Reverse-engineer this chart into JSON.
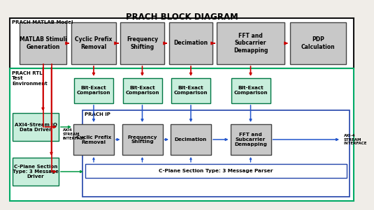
{
  "title": "PRACH BLOCK DIAGRAM",
  "bg_color": "#f0ede8",
  "matlab_border_color": "#111111",
  "rtl_border_color": "#00aa66",
  "ip_border_color": "#2244aa",
  "box_fill_gray": "#c8c8c8",
  "box_stroke": "#444444",
  "arrow_red": "#cc0000",
  "arrow_blue": "#2255cc",
  "arrow_green": "#009944",
  "matlab_label": "PRACH MATLAB Model",
  "rtl_label": "PRACH RTL\nTest\nEnvironment",
  "ip_label": "PRACH IP",
  "top_boxes": [
    "MATLAB Stimuli\nGeneration",
    "Cyclic Prefix\nRemoval",
    "Frequency\nShifting",
    "Decimation",
    "FFT and\nSubcarrier\nDemapping",
    "PDP\nCalculation"
  ],
  "compare_boxes": [
    "Bit-Exact\nComparison",
    "Bit-Exact\nComparison",
    "Bit-Exact\nComparison",
    "Bit-Exact\nComparison"
  ],
  "ip_boxes": [
    "Cyclic Prefix\nRemoval",
    "Frequency\nShifting",
    "Decimation",
    "FFT and\nSubcarrier\nDemapping"
  ],
  "left_boxes": [
    "AXI4-Stream IQ\nData Driver",
    "C-Plane Section\nType: 3 Message\nDriver"
  ],
  "parser_box": "C-Plane Section Type: 3 Message Parser",
  "axi4_stream_left": "AXI4\nSTREAM\nINTERFACE",
  "axi4_stream_right": "AXI-4\nSTREAM\nINTERFACE"
}
